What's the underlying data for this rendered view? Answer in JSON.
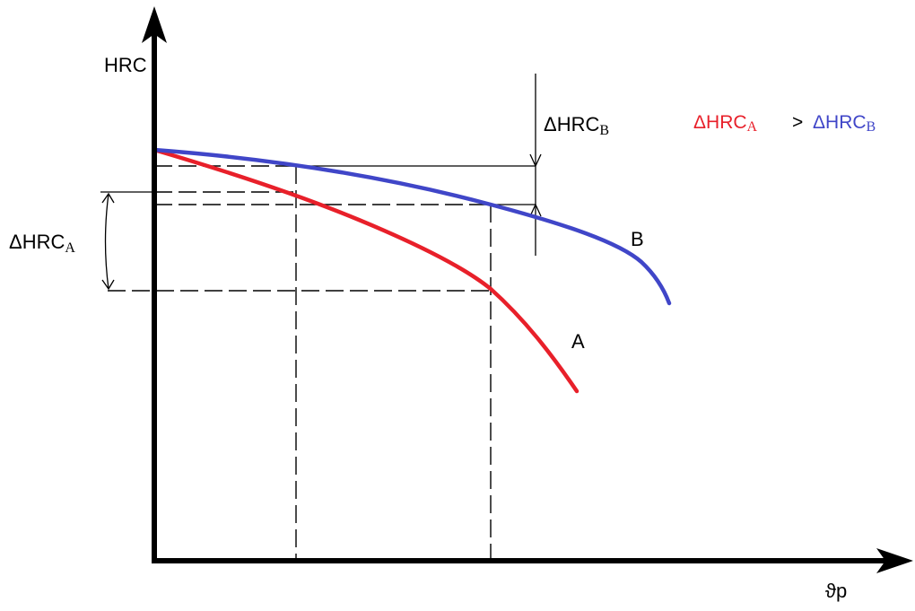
{
  "axes": {
    "y_label": "HRC",
    "x_label": "ϑp"
  },
  "curves": [
    {
      "label": "A",
      "color": "#e8202a"
    },
    {
      "label": "B",
      "color": "#4046c8"
    }
  ],
  "annotations": {
    "delta_a": {
      "symbol": "ΔHRC",
      "subscript": "A"
    },
    "delta_b": {
      "symbol": "ΔHRC",
      "subscript": "B"
    }
  },
  "legend": {
    "left": {
      "symbol": "ΔHRC",
      "subscript": "A",
      "color": "#e8202a"
    },
    "operator": "˃",
    "right": {
      "symbol": "ΔHRC",
      "subscript": "B",
      "color": "#4046c8"
    }
  },
  "colors": {
    "axis": "#000000",
    "guide": "#000000",
    "curve_a": "#e8202a",
    "curve_b": "#4046c8"
  }
}
